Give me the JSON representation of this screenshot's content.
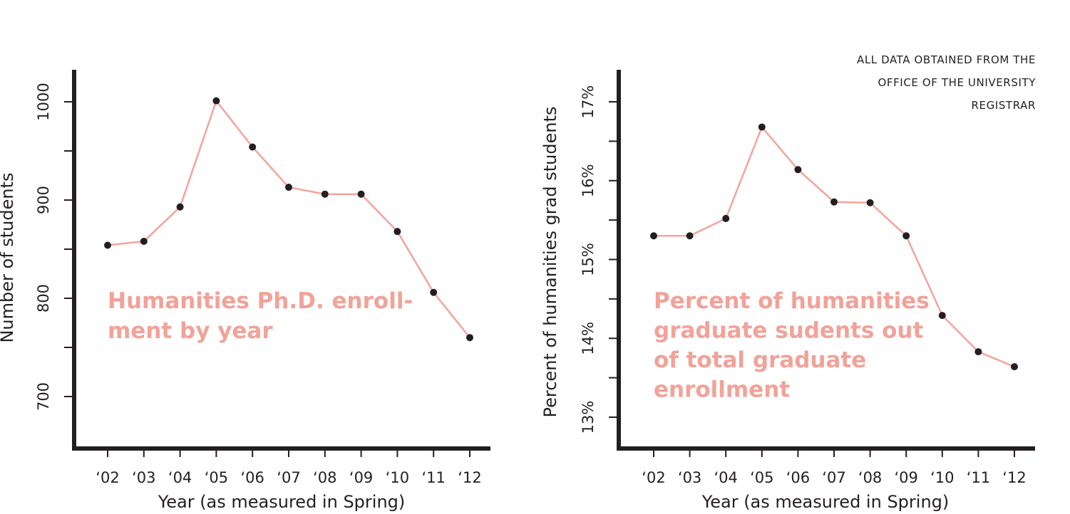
{
  "source_note": {
    "lines": [
      "ALL DATA OBTAINED FROM THE",
      "OFFICE OF THE UNIVERSITY",
      "REGISTRAR"
    ]
  },
  "colors": {
    "line": "#f4a49c",
    "title": "#f2a299",
    "axis": "#231f20",
    "point": "#231f20"
  },
  "chart_data": [
    {
      "type": "line",
      "title_lines": [
        "Humanities Ph.D. enroll-",
        "ment by year"
      ],
      "xlabel": "Year (as measured in Spring)",
      "ylabel": "Number of students",
      "categories": [
        "‘02",
        "‘03",
        "‘04",
        "‘05",
        "‘06",
        "‘07",
        "‘08",
        "‘09",
        "‘10",
        "‘11",
        "‘12"
      ],
      "values": [
        854,
        858,
        893,
        1001,
        954,
        913,
        906,
        906,
        868,
        806,
        760
      ],
      "ylim": [
        650,
        1030
      ],
      "yticks_major": [
        700,
        800,
        900,
        1000
      ],
      "yticks_major_labels": [
        "700",
        "800",
        "900",
        "1000"
      ],
      "yticks_minor": [
        750,
        850,
        950
      ],
      "grid": false
    },
    {
      "type": "line",
      "title_lines": [
        "Percent of humanities",
        "graduate sudents out",
        "of total graduate",
        "enrollment"
      ],
      "xlabel": "Year (as measured in Spring)",
      "ylabel": "Percent of humanities grad students",
      "categories": [
        "‘02",
        "‘03",
        "‘04",
        "‘05",
        "‘06",
        "‘07",
        "‘08",
        "‘09",
        "‘10",
        "‘11",
        "‘12"
      ],
      "values": [
        15.3,
        15.3,
        15.52,
        16.68,
        16.14,
        15.73,
        15.72,
        15.3,
        14.29,
        13.83,
        13.64
      ],
      "ylim": [
        12.6,
        17.4
      ],
      "yticks_major": [
        13,
        14,
        15,
        16,
        17
      ],
      "yticks_major_labels": [
        "13%",
        "14%",
        "15%",
        "16%",
        "17%"
      ],
      "yticks_minor": [
        13.5,
        14.5,
        15.5,
        16.5
      ],
      "grid": false
    }
  ]
}
